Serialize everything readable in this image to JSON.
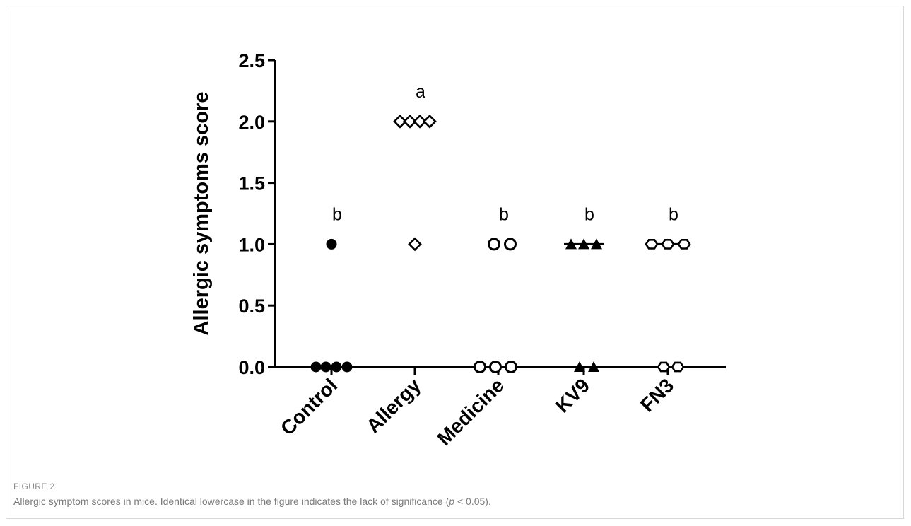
{
  "figure": {
    "label": "FIGURE 2",
    "caption_parts": [
      "Allergic symptom scores in mice. Identical lowercase in the figure indicates the lack of significance (",
      "p",
      " < 0.05)."
    ]
  },
  "chart_data": {
    "type": "scatter",
    "title": "",
    "ylabel": "Allergic symptoms score",
    "xlabel": "",
    "ylim": [
      0,
      2.5
    ],
    "yticks": [
      "0.0",
      "0.5",
      "1.0",
      "1.5",
      "2.0",
      "2.5"
    ],
    "categories": [
      "Control",
      "Allergy",
      "Medicine",
      "KV9",
      "FN3"
    ],
    "series": [
      {
        "category": "Control",
        "marker": "filled-circle",
        "values": [
          0,
          0,
          0,
          0,
          1
        ],
        "median": 0,
        "letter": "b"
      },
      {
        "category": "Allergy",
        "marker": "open-diamond",
        "values": [
          2,
          2,
          2,
          2,
          1
        ],
        "median": 2,
        "letter": "a"
      },
      {
        "category": "Medicine",
        "marker": "open-circle",
        "values": [
          0,
          0,
          0,
          1,
          1
        ],
        "median": 0,
        "letter": "b"
      },
      {
        "category": "KV9",
        "marker": "filled-triangle",
        "values": [
          0,
          0,
          1,
          1,
          1
        ],
        "median": 1,
        "letter": "b"
      },
      {
        "category": "FN3",
        "marker": "open-hexagon",
        "values": [
          0,
          0,
          1,
          1,
          1
        ],
        "median": 1,
        "letter": "b"
      }
    ],
    "grid": false,
    "legend": "none"
  }
}
